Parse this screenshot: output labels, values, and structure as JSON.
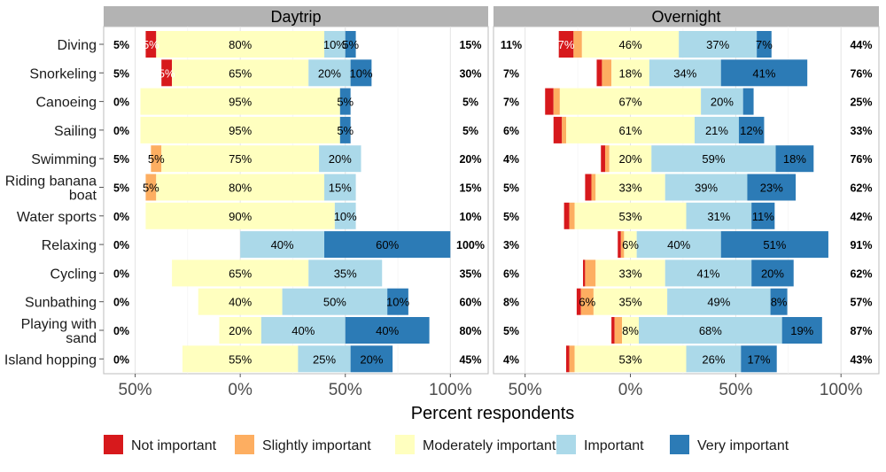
{
  "chart_data": {
    "type": "bar",
    "stacked": "diverging",
    "xlabel": "Percent respondents",
    "x_ticks": [
      "50%",
      "0%",
      "50%",
      "100%"
    ],
    "x_tick_values": [
      -50,
      0,
      50,
      100
    ],
    "xlim": [
      -65,
      118
    ],
    "grid": true,
    "legend_position": "bottom",
    "legend": [
      {
        "name": "Not important",
        "color": "#d7191c"
      },
      {
        "name": "Slightly important",
        "color": "#fdae61"
      },
      {
        "name": "Moderately important",
        "color": "#ffffbf"
      },
      {
        "name": "Important",
        "color": "#abd9e9"
      },
      {
        "name": "Very important",
        "color": "#2c7bb6"
      }
    ],
    "categories": [
      "Diving",
      "Snorkeling",
      "Canoeing",
      "Sailing",
      "Swimming",
      "Riding banana boat",
      "Water sports",
      "Relaxing",
      "Cycling",
      "Sunbathing",
      "Playing with sand",
      "Island hopping"
    ],
    "category_lines": [
      [
        "Diving"
      ],
      [
        "Snorkeling"
      ],
      [
        "Canoeing"
      ],
      [
        "Sailing"
      ],
      [
        "Swimming"
      ],
      [
        "Riding banana",
        "boat"
      ],
      [
        "Water sports"
      ],
      [
        "Relaxing"
      ],
      [
        "Cycling"
      ],
      [
        "Sunbathing"
      ],
      [
        "Playing with",
        "sand"
      ],
      [
        "Island hopping"
      ]
    ],
    "panels": [
      {
        "title": "Daytrip",
        "rows": [
          {
            "values": [
              5,
              0,
              80,
              10,
              5
            ],
            "labels": [
              "5%",
              "",
              "80%",
              "10%",
              "5%"
            ],
            "low": "5%",
            "high": "15%"
          },
          {
            "values": [
              5,
              0,
              65,
              20,
              10
            ],
            "labels": [
              "5%",
              "",
              "65%",
              "20%",
              "10%"
            ],
            "low": "5%",
            "high": "30%"
          },
          {
            "values": [
              0,
              0,
              95,
              0,
              5
            ],
            "labels": [
              "",
              "",
              "95%",
              "",
              "5%"
            ],
            "low": "0%",
            "high": "5%"
          },
          {
            "values": [
              0,
              0,
              95,
              0,
              5
            ],
            "labels": [
              "",
              "",
              "95%",
              "",
              "5%"
            ],
            "low": "0%",
            "high": "5%"
          },
          {
            "values": [
              0,
              5,
              75,
              20,
              0
            ],
            "labels": [
              "",
              "5%",
              "75%",
              "20%",
              ""
            ],
            "low": "5%",
            "high": "20%"
          },
          {
            "values": [
              0,
              5,
              80,
              15,
              0
            ],
            "labels": [
              "",
              "5%",
              "80%",
              "15%",
              ""
            ],
            "low": "5%",
            "high": "15%"
          },
          {
            "values": [
              0,
              0,
              90,
              10,
              0
            ],
            "labels": [
              "",
              "",
              "90%",
              "10%",
              ""
            ],
            "low": "0%",
            "high": "10%"
          },
          {
            "values": [
              0,
              0,
              0,
              40,
              60
            ],
            "labels": [
              "",
              "",
              "",
              "40%",
              "60%"
            ],
            "low": "0%",
            "high": "100%"
          },
          {
            "values": [
              0,
              0,
              65,
              35,
              0
            ],
            "labels": [
              "",
              "",
              "65%",
              "35%",
              ""
            ],
            "low": "0%",
            "high": "35%"
          },
          {
            "values": [
              0,
              0,
              40,
              50,
              10
            ],
            "labels": [
              "",
              "",
              "40%",
              "50%",
              "10%"
            ],
            "low": "0%",
            "high": "60%"
          },
          {
            "values": [
              0,
              0,
              20,
              40,
              40
            ],
            "labels": [
              "",
              "",
              "20%",
              "40%",
              "40%"
            ],
            "low": "0%",
            "high": "80%"
          },
          {
            "values": [
              0,
              0,
              55,
              25,
              20
            ],
            "labels": [
              "",
              "",
              "55%",
              "25%",
              "20%"
            ],
            "low": "0%",
            "high": "45%"
          }
        ]
      },
      {
        "title": "Overnight",
        "rows": [
          {
            "values": [
              7,
              4,
              46,
              37,
              7
            ],
            "labels": [
              "7%",
              "",
              "46%",
              "37%",
              "7%"
            ],
            "low": "11%",
            "high": "44%"
          },
          {
            "values": [
              2.5,
              4.5,
              18,
              34,
              41
            ],
            "labels": [
              "",
              "",
              "18%",
              "34%",
              "41%"
            ],
            "low": "7%",
            "high": "76%"
          },
          {
            "values": [
              4,
              3,
              67,
              20,
              5
            ],
            "labels": [
              "",
              "",
              "67%",
              "20%",
              ""
            ],
            "low": "7%",
            "high": "25%"
          },
          {
            "values": [
              4,
              2,
              61,
              21,
              12
            ],
            "labels": [
              "",
              "",
              "61%",
              "21%",
              "12%"
            ],
            "low": "6%",
            "high": "33%"
          },
          {
            "values": [
              2,
              2,
              20,
              59,
              18
            ],
            "labels": [
              "",
              "",
              "20%",
              "59%",
              "18%"
            ],
            "low": "4%",
            "high": "76%"
          },
          {
            "values": [
              3,
              2,
              33,
              39,
              23
            ],
            "labels": [
              "",
              "",
              "33%",
              "39%",
              "23%"
            ],
            "low": "5%",
            "high": "62%"
          },
          {
            "values": [
              2.5,
              2.5,
              53,
              31,
              11
            ],
            "labels": [
              "",
              "",
              "53%",
              "31%",
              "11%"
            ],
            "low": "5%",
            "high": "42%"
          },
          {
            "values": [
              1.5,
              1.5,
              6,
              40,
              51
            ],
            "labels": [
              "",
              "",
              "6%",
              "40%",
              "51%"
            ],
            "low": "3%",
            "high": "91%"
          },
          {
            "values": [
              1,
              5,
              33,
              41,
              20
            ],
            "labels": [
              "",
              "",
              "33%",
              "41%",
              "20%"
            ],
            "low": "6%",
            "high": "62%"
          },
          {
            "values": [
              2,
              6,
              35,
              49,
              8
            ],
            "labels": [
              "",
              "6%",
              "35%",
              "49%",
              "8%"
            ],
            "low": "8%",
            "high": "57%"
          },
          {
            "values": [
              1.5,
              3.5,
              8,
              68,
              19
            ],
            "labels": [
              "",
              "",
              "8%",
              "68%",
              "19%"
            ],
            "low": "5%",
            "high": "87%"
          },
          {
            "values": [
              1.5,
              2.5,
              53,
              26,
              17
            ],
            "labels": [
              "",
              "",
              "53%",
              "26%",
              "17%"
            ],
            "low": "4%",
            "high": "43%"
          }
        ]
      }
    ]
  }
}
